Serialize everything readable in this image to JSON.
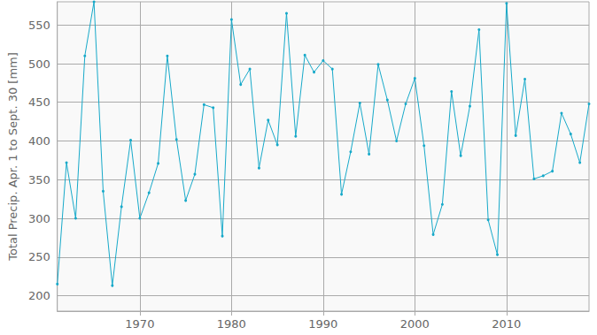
{
  "chart_data": {
    "type": "line",
    "y_label": "Total Precip. Apr. 1 to Sept. 30 [mm]",
    "x": [
      1961,
      1962,
      1963,
      1964,
      1965,
      1966,
      1967,
      1968,
      1969,
      1970,
      1971,
      1972,
      1973,
      1974,
      1975,
      1976,
      1977,
      1978,
      1979,
      1980,
      1981,
      1982,
      1983,
      1984,
      1985,
      1986,
      1987,
      1988,
      1989,
      1990,
      1991,
      1992,
      1993,
      1994,
      1995,
      1996,
      1997,
      1998,
      1999,
      2000,
      2001,
      2002,
      2003,
      2004,
      2005,
      2006,
      2007,
      2008,
      2009,
      2010,
      2011,
      2012,
      2013,
      2014,
      2015,
      2016,
      2017,
      2018,
      2019
    ],
    "values": [
      215,
      372,
      300,
      510,
      580,
      335,
      213,
      315,
      401,
      300,
      333,
      371,
      510,
      402,
      323,
      357,
      447,
      443,
      277,
      557,
      473,
      493,
      365,
      427,
      395,
      565,
      406,
      511,
      489,
      504,
      493,
      331,
      386,
      449,
      383,
      499,
      453,
      400,
      448,
      481,
      394,
      279,
      318,
      464,
      381,
      445,
      544,
      298,
      253,
      578,
      407,
      480,
      351,
      355,
      361,
      436,
      409,
      372,
      448
    ],
    "color": "#17a9c9",
    "marker": "circle",
    "xlim": [
      1961,
      2019
    ],
    "xticks": [
      1970,
      1980,
      1990,
      2000,
      2010
    ],
    "ylim": [
      180,
      580
    ],
    "yticks": [
      200,
      250,
      300,
      350,
      400,
      450,
      500,
      550
    ],
    "grid": true
  }
}
